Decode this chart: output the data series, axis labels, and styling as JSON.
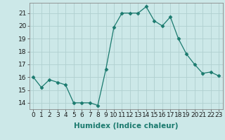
{
  "x": [
    0,
    1,
    2,
    3,
    4,
    5,
    6,
    7,
    8,
    9,
    10,
    11,
    12,
    13,
    14,
    15,
    16,
    17,
    18,
    19,
    20,
    21,
    22,
    23
  ],
  "y": [
    16.0,
    15.2,
    15.8,
    15.6,
    15.4,
    14.0,
    14.0,
    14.0,
    13.8,
    16.6,
    19.9,
    21.0,
    21.0,
    21.0,
    21.5,
    20.4,
    20.0,
    20.7,
    19.0,
    17.8,
    17.0,
    16.3,
    16.4,
    16.1
  ],
  "line_color": "#1a7a6e",
  "marker": "D",
  "marker_size": 2.5,
  "bg_color": "#cce8e8",
  "grid_color": "#b0d0d0",
  "xlabel": "Humidex (Indice chaleur)",
  "xlim": [
    -0.5,
    23.5
  ],
  "ylim": [
    13.5,
    21.8
  ],
  "yticks": [
    14,
    15,
    16,
    17,
    18,
    19,
    20,
    21
  ],
  "xticks": [
    0,
    1,
    2,
    3,
    4,
    5,
    6,
    7,
    8,
    9,
    10,
    11,
    12,
    13,
    14,
    15,
    16,
    17,
    18,
    19,
    20,
    21,
    22,
    23
  ],
  "xlabel_fontsize": 7.5,
  "tick_fontsize": 6.5
}
